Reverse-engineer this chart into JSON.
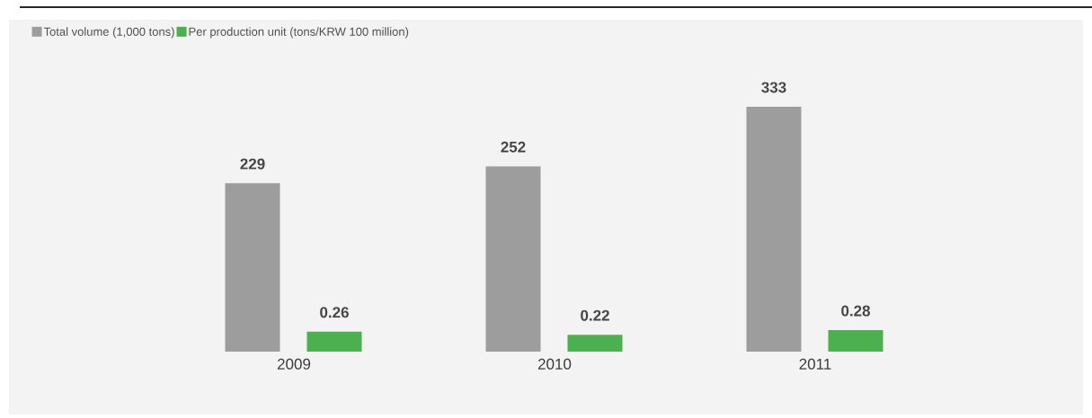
{
  "chart_data": {
    "type": "bar",
    "categories": [
      "2009",
      "2010",
      "2011"
    ],
    "series": [
      {
        "name": "Total volume (1,000 tons)",
        "color": "#9d9d9d",
        "values": [
          229,
          252,
          333
        ]
      },
      {
        "name": "Per production unit (tons/KRW 100 million)",
        "color": "#4caf50",
        "values": [
          0.26,
          0.22,
          0.28
        ],
        "axis": "y2"
      }
    ],
    "y2lim": [
      0,
      3.2
    ],
    "tick_labels": "x",
    "data_labels": true,
    "legend": "top left"
  }
}
